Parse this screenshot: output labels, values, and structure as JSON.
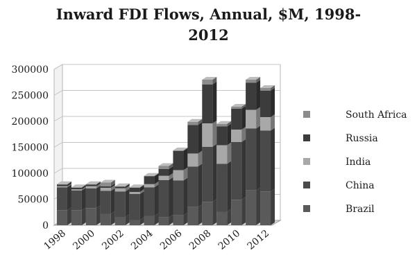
{
  "chart_data": {
    "type": "bar",
    "stacked": true,
    "title_line1": "Inward FDI Flows, Annual, $M, 1998-",
    "title_line2": "2012",
    "categories": [
      "1998",
      "1999",
      "2000",
      "2001",
      "2002",
      "2003",
      "2004",
      "2005",
      "2006",
      "2007",
      "2008",
      "2009",
      "2010",
      "2011",
      "2012"
    ],
    "x_tick_labels": [
      "1998",
      "2000",
      "2002",
      "2004",
      "2006",
      "2008",
      "2010",
      "2012"
    ],
    "y_tick_labels": [
      "0",
      "50000",
      "100000",
      "150000",
      "200000",
      "250000",
      "300000"
    ],
    "ylim": [
      0,
      300000
    ],
    "series": [
      {
        "name": "Brazil",
        "color": "#5a5a5a",
        "values": [
          29000,
          29000,
          33000,
          22000,
          16000,
          10000,
          18000,
          15000,
          19000,
          35000,
          45000,
          26000,
          49000,
          67000,
          65000
        ]
      },
      {
        "name": "China",
        "color": "#4a4a4a",
        "values": [
          44000,
          38000,
          38000,
          44000,
          49000,
          50000,
          55000,
          72000,
          67000,
          78000,
          106000,
          92000,
          111000,
          119000,
          117000
        ]
      },
      {
        "name": "India",
        "color": "#a8a8a8",
        "values": [
          2000,
          2000,
          4000,
          6000,
          6000,
          4000,
          6000,
          8000,
          20000,
          25000,
          45000,
          36000,
          24000,
          36000,
          26000
        ]
      },
      {
        "name": "Russia",
        "color": "#3c3c3c",
        "values": [
          3000,
          3000,
          3000,
          3000,
          3000,
          8000,
          15000,
          13000,
          37000,
          55000,
          75000,
          36000,
          40000,
          52000,
          51000
        ]
      },
      {
        "name": "South Africa",
        "color": "#8c8c8c",
        "values": [
          1000,
          1000,
          1000,
          7000,
          1000,
          1000,
          1000,
          6000,
          1000,
          6000,
          9000,
          5000,
          4000,
          6000,
          5000
        ]
      }
    ],
    "legend_order": [
      "South Africa",
      "Russia",
      "India",
      "China",
      "Brazil"
    ],
    "legend_position": "right",
    "grid": true
  }
}
